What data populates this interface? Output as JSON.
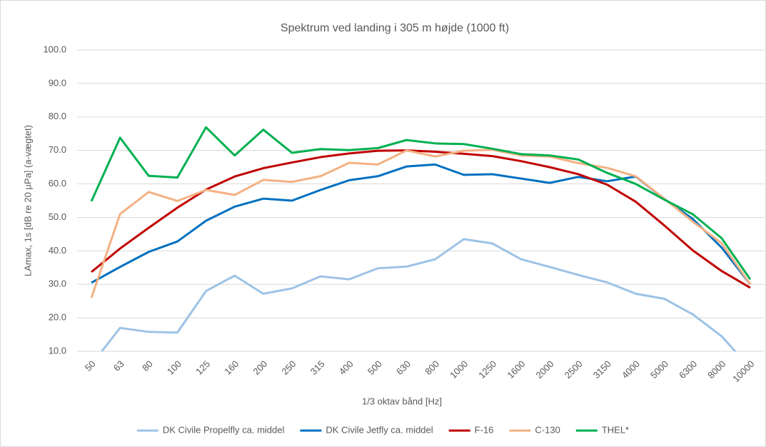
{
  "chart_data": {
    "type": "line",
    "title": "Spektrum ved landing i 305 m højde (1000 ft)",
    "x_label": "1/3 oktav bånd [Hz]",
    "y_label": "LAmax, 1s [dB re 20 µPa] (a-vægtet)",
    "categories": [
      "50",
      "63",
      "80",
      "100",
      "125",
      "160",
      "200",
      "250",
      "315",
      "400",
      "500",
      "630",
      "800",
      "1000",
      "1250",
      "1600",
      "2000",
      "2500",
      "3150",
      "4000",
      "5000",
      "6300",
      "8000",
      "10000"
    ],
    "series": [
      {
        "name": "DK Civile Propelfly ca. middel",
        "color": "#9dc3e6",
        "values": [
          6,
          17,
          15.8,
          15.6,
          28,
          32.6,
          27.2,
          28.8,
          32.4,
          31.5,
          34.8,
          35.3,
          37.5,
          43.5,
          42.2,
          37.5,
          35.2,
          32.8,
          30.6,
          27.2,
          25.7,
          21,
          14.5,
          5
        ]
      },
      {
        "name": "DK Civile Jetfly ca. middel",
        "color": "#0070c0",
        "values": [
          30.5,
          35.2,
          39.7,
          42.8,
          49,
          53.2,
          55.6,
          55,
          58.2,
          61.1,
          62.3,
          65.2,
          65.8,
          62.7,
          62.9,
          61.6,
          60.3,
          62.1,
          60.8,
          62.2,
          55.5,
          49.5,
          41,
          30
        ]
      },
      {
        "name": "F-16",
        "color": "#c00000",
        "values": [
          33.7,
          40.7,
          46.9,
          52.9,
          58.3,
          62.2,
          64.7,
          66.4,
          68,
          69.1,
          69.9,
          70,
          69.6,
          69,
          68.3,
          66.8,
          65,
          62.9,
          59.8,
          54.7,
          47.6,
          40.1,
          34,
          29
        ]
      },
      {
        "name": "C-130",
        "color": "#f4b183",
        "values": [
          26,
          51,
          57.6,
          54.9,
          58.2,
          56.7,
          61.2,
          60.6,
          62.3,
          66.3,
          65.8,
          70,
          68.2,
          69.9,
          70.2,
          68.5,
          68.2,
          66.2,
          64.8,
          62.3,
          55.6,
          48.7,
          42.3,
          30
        ]
      },
      {
        "name": "THEL*",
        "color": "#00b050",
        "values": [
          54.8,
          73.8,
          62.4,
          61.9,
          76.9,
          68.5,
          76.2,
          69.3,
          70.4,
          70.1,
          70.7,
          73.1,
          72.1,
          71.9,
          70.5,
          68.9,
          68.5,
          67.3,
          63.3,
          60,
          55.3,
          50.9,
          43.8,
          31.5
        ]
      }
    ],
    "ylim": [
      10,
      100
    ],
    "yticks": [
      {
        "value": 10,
        "label": "10.0"
      },
      {
        "value": 20,
        "label": "20.0"
      },
      {
        "value": 30,
        "label": "30.0"
      },
      {
        "value": 40,
        "label": "40.0"
      },
      {
        "value": 50,
        "label": "50.0"
      },
      {
        "value": 60,
        "label": "60.0"
      },
      {
        "value": 70,
        "label": "70.0"
      },
      {
        "value": 80,
        "label": "80.0"
      },
      {
        "value": 90,
        "label": "90.0"
      },
      {
        "value": 100,
        "label": "100.0"
      }
    ],
    "grid": true,
    "legend": "bottom"
  }
}
